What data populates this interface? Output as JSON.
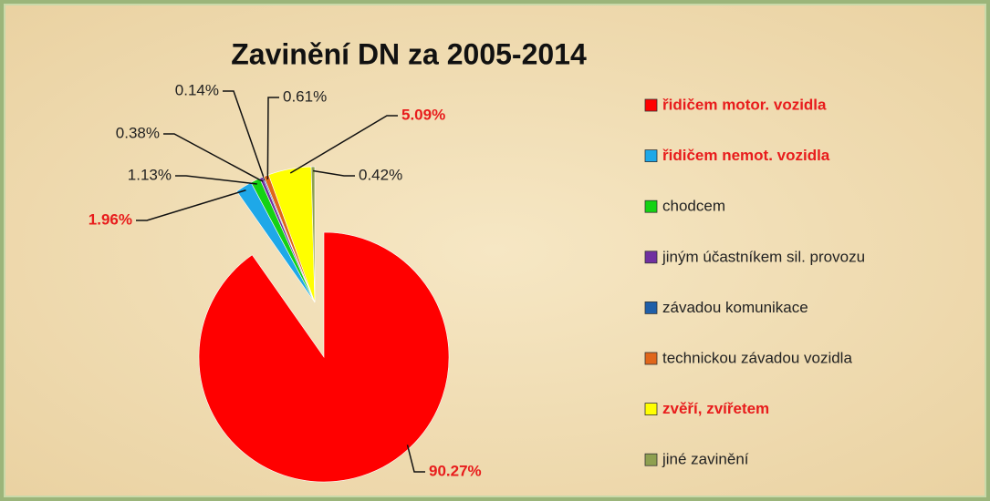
{
  "chart_data": {
    "type": "pie",
    "title": "Zavinění DN za 2005-2014",
    "categories": [
      "řidičem motor. vozidla",
      "řidičem nemot. vozidla",
      "chodcem",
      "jiným účastníkem sil. provozu",
      "závadou komunikace",
      "technickou závadou vozidla",
      "zvěří, zvířetem",
      "jiné zavinění"
    ],
    "values": [
      90.27,
      1.96,
      1.13,
      0.38,
      0.14,
      0.61,
      5.09,
      0.42
    ],
    "value_labels": [
      "90.27%",
      "1.96%",
      "1.13%",
      "0.38%",
      "0.14%",
      "0.61%",
      "5.09%",
      "0.42%"
    ],
    "colors": [
      "#ff0000",
      "#1ea8e8",
      "#14d214",
      "#7030a0",
      "#1f5fa8",
      "#e0661a",
      "#ffff00",
      "#8ea050"
    ],
    "label_colors": [
      "#e81c1c",
      "#e81c1c",
      "#222222",
      "#222222",
      "#222222",
      "#222222",
      "#e81c1c",
      "#222222"
    ],
    "legend": "right"
  }
}
